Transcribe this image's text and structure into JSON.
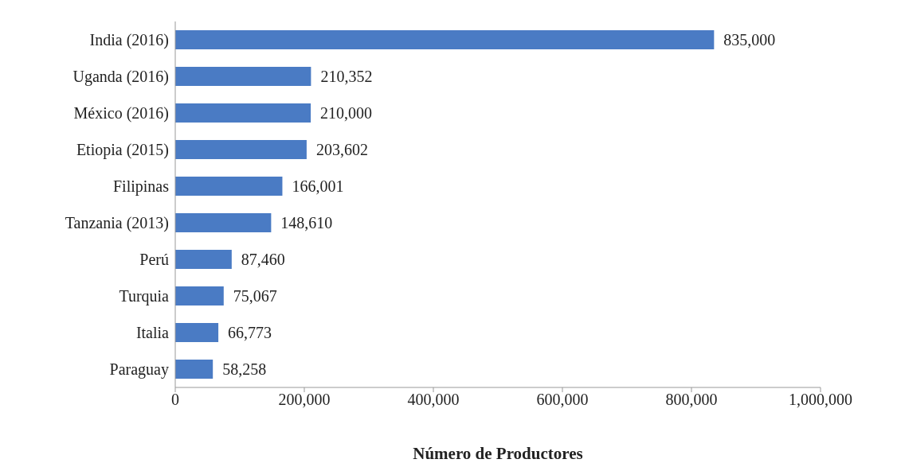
{
  "chart_data": {
    "type": "bar",
    "orientation": "horizontal",
    "xlabel": "Número de Productores",
    "categories": [
      "India (2016)",
      "Uganda (2016)",
      "México (2016)",
      "Etiopia (2015)",
      "Filipinas",
      "Tanzania (2013)",
      "Perú",
      "Turquia",
      "Italia",
      "Paraguay"
    ],
    "values": [
      835000,
      210352,
      210000,
      203602,
      166001,
      148610,
      87460,
      75067,
      66773,
      58258
    ],
    "value_labels": [
      "835,000",
      "210,352",
      "210,000",
      "203,602",
      "166,001",
      "148,610",
      "87,460",
      "75,067",
      "66,773",
      "58,258"
    ],
    "color": "#4a7bc4",
    "xlim": [
      0,
      1000000
    ],
    "xticks": [
      0,
      {
        "value": 200000,
        "label": "200,000"
      },
      {
        "value": 400000,
        "label": "400,000"
      },
      {
        "value": 600000,
        "label": "600,000"
      },
      {
        "value": 800000,
        "label": "800,000"
      },
      {
        "value": 1000000,
        "label": "1,000,000"
      }
    ],
    "grid": false,
    "legend": false
  }
}
